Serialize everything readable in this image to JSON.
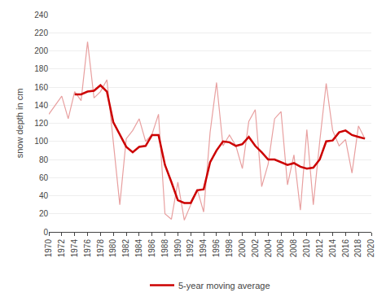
{
  "chart_data": {
    "type": "line",
    "ylabel": "snow depth in cm",
    "x": [
      1970,
      1971,
      1972,
      1973,
      1974,
      1975,
      1976,
      1977,
      1978,
      1979,
      1980,
      1981,
      1982,
      1983,
      1984,
      1985,
      1986,
      1987,
      1988,
      1989,
      1990,
      1991,
      1992,
      1993,
      1994,
      1995,
      1996,
      1997,
      1998,
      1999,
      2000,
      2001,
      2002,
      2003,
      2004,
      2005,
      2006,
      2007,
      2008,
      2009,
      2010,
      2011,
      2012,
      2013,
      2014,
      2015,
      2016,
      2017,
      2018,
      2019
    ],
    "series": [
      {
        "color": "#e8a0a0",
        "line_style": "solid",
        "values": [
          130,
          140,
          150,
          125,
          155,
          145,
          210,
          148,
          155,
          168,
          100,
          30,
          103,
          112,
          125,
          100,
          108,
          130,
          20,
          14,
          55,
          13,
          30,
          47,
          22,
          110,
          165,
          95,
          107,
          95,
          70,
          122,
          135,
          50,
          75,
          125,
          133,
          52,
          85,
          24,
          113,
          30,
          100,
          164,
          112,
          95,
          102,
          65,
          117,
          103
        ]
      },
      {
        "name": "5-year moving average",
        "color": "#cc0000",
        "line_style": "solid",
        "values": [
          null,
          null,
          null,
          null,
          152,
          152,
          155,
          156,
          162,
          155,
          121,
          108,
          94,
          88,
          94,
          95,
          107,
          107,
          74,
          55,
          35,
          32,
          32,
          46,
          47,
          77,
          90,
          100,
          99,
          95,
          97,
          105,
          95,
          88,
          80,
          80,
          77,
          74,
          76,
          72,
          70,
          71,
          80,
          100,
          101,
          110,
          112,
          107,
          105,
          103
        ]
      }
    ],
    "xlim": [
      1970,
      2020
    ],
    "xticks": [
      1970,
      1972,
      1974,
      1976,
      1978,
      1980,
      1982,
      1984,
      1986,
      1988,
      1990,
      1992,
      1994,
      1996,
      1998,
      2000,
      2002,
      2004,
      2006,
      2008,
      2010,
      2012,
      2014,
      2016,
      2018,
      2020
    ],
    "ylim": [
      0,
      240
    ],
    "yticks": [
      0,
      20,
      40,
      60,
      80,
      100,
      120,
      140,
      160,
      180,
      200,
      220,
      240
    ],
    "grid": "y",
    "legend": "bottom"
  }
}
